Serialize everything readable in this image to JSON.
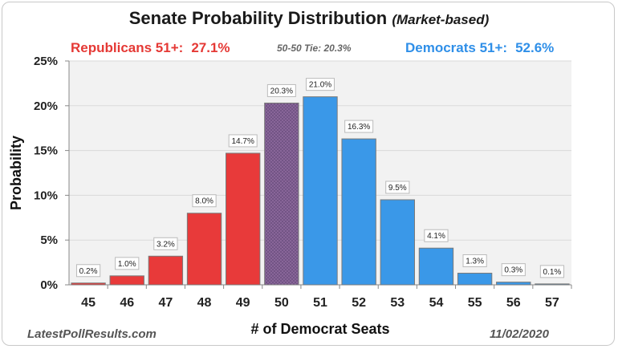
{
  "title": {
    "main": "Senate Probability Distribution",
    "sub": "(Market-based)"
  },
  "summary": {
    "rep_label": "Republicans 51+:",
    "rep_value": "27.1%",
    "tie_text": "50-50 Tie: 20.3%",
    "dem_label": "Democrats 51+:",
    "dem_value": "52.6%"
  },
  "footer": {
    "source": "LatestPollResults.com",
    "date": "11/02/2020"
  },
  "colors": {
    "republican": "#e83a3a",
    "tie": "#8e6a9e",
    "democrat": "#3a98e8",
    "bar_border": "#7a7a7a",
    "grid": "#d9d9d9",
    "plot_bg": "#f2f2f2"
  },
  "chart_data": {
    "type": "bar",
    "xlabel": "# of Democrat Seats",
    "ylabel": "Probability",
    "ylim": [
      0,
      25
    ],
    "yticks": [
      "0%",
      "5%",
      "10%",
      "15%",
      "20%",
      "25%"
    ],
    "grid": true,
    "categories": [
      "45",
      "46",
      "47",
      "48",
      "49",
      "50",
      "51",
      "52",
      "53",
      "54",
      "55",
      "56",
      "57"
    ],
    "values": [
      0.2,
      1.0,
      3.2,
      8.0,
      14.7,
      20.3,
      21.0,
      16.3,
      9.5,
      4.1,
      1.3,
      0.3,
      0.1
    ],
    "data_labels": [
      "0.2%",
      "1.0%",
      "3.2%",
      "8.0%",
      "14.7%",
      "20.3%",
      "21.0%",
      "16.3%",
      "9.5%",
      "4.1%",
      "1.3%",
      "0.3%",
      "0.1%"
    ],
    "bar_groups": [
      "republican",
      "republican",
      "republican",
      "republican",
      "republican",
      "tie",
      "democrat",
      "democrat",
      "democrat",
      "democrat",
      "democrat",
      "democrat",
      "democrat"
    ]
  }
}
